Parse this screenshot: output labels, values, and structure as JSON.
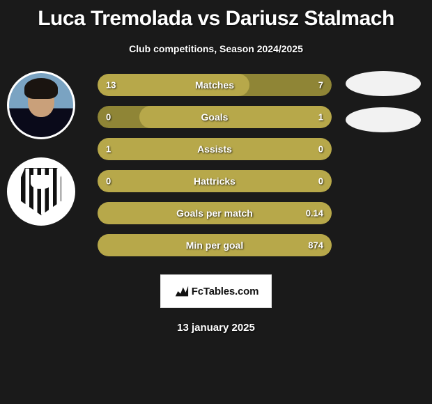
{
  "title": "Luca Tremolada vs Dariusz Stalmach",
  "subtitle": "Club competitions, Season 2024/2025",
  "date": "13 january 2025",
  "logo_text": "FcTables.com",
  "colors": {
    "olive_light": "#b7a84a",
    "olive_dark": "#8f8536",
    "text": "#ffffff",
    "bg": "#1a1a1a",
    "oval": "#f2f2f2"
  },
  "bars": [
    {
      "name": "Matches",
      "left_value": "13",
      "right_value": "7",
      "outer_color": "#8f8536",
      "inner_color": "#b7a84a",
      "inner_start_pct": 0,
      "inner_width_pct": 65
    },
    {
      "name": "Goals",
      "left_value": "0",
      "right_value": "1",
      "outer_color": "#8f8536",
      "inner_color": "#b7a84a",
      "inner_start_pct": 18,
      "inner_width_pct": 82
    },
    {
      "name": "Assists",
      "left_value": "1",
      "right_value": "0",
      "outer_color": "#8f8536",
      "inner_color": "#b7a84a",
      "inner_start_pct": 0,
      "inner_width_pct": 100
    },
    {
      "name": "Hattricks",
      "left_value": "0",
      "right_value": "0",
      "outer_color": "#8f8536",
      "inner_color": "#b7a84a",
      "inner_start_pct": 0,
      "inner_width_pct": 100
    },
    {
      "name": "Goals per match",
      "left_value": "",
      "right_value": "0.14",
      "outer_color": "#b7a84a",
      "inner_color": "#b7a84a",
      "inner_start_pct": 0,
      "inner_width_pct": 100
    },
    {
      "name": "Min per goal",
      "left_value": "",
      "right_value": "874",
      "outer_color": "#b7a84a",
      "inner_color": "#b7a84a",
      "inner_start_pct": 0,
      "inner_width_pct": 100
    }
  ]
}
